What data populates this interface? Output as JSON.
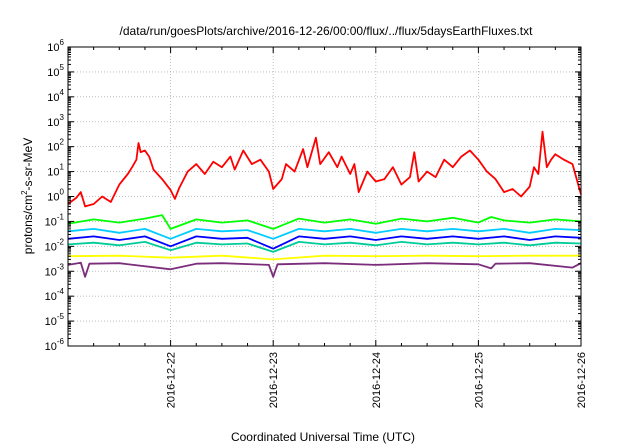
{
  "chart_data": {
    "type": "line",
    "title": "/data/run/goesPlots/archive/2016-12-26/00:00/flux/../flux/5daysEarthFluxes.txt",
    "xlabel": "Coordinated Universal Time (UTC)",
    "ylabel": "protons/cm²-s-sr-MeV",
    "ylabel_parts": {
      "pre": "protons/cm",
      "sup": "2",
      "post": "-s-sr-MeV"
    },
    "y_scale": "log",
    "ylim": [
      1e-06,
      1000000.0
    ],
    "y_ticks": [
      {
        "base": "10",
        "exp": "-6",
        "value": 1e-06
      },
      {
        "base": "10",
        "exp": "-5",
        "value": 1e-05
      },
      {
        "base": "10",
        "exp": "-4",
        "value": 0.0001
      },
      {
        "base": "10",
        "exp": "-3",
        "value": 0.001
      },
      {
        "base": "10",
        "exp": "-2",
        "value": 0.01
      },
      {
        "base": "10",
        "exp": "-1",
        "value": 0.1
      },
      {
        "base": "10",
        "exp": "0",
        "value": 1.0
      },
      {
        "base": "10",
        "exp": "1",
        "value": 10.0
      },
      {
        "base": "10",
        "exp": "2",
        "value": 100.0
      },
      {
        "base": "10",
        "exp": "3",
        "value": 1000.0
      },
      {
        "base": "10",
        "exp": "4",
        "value": 10000.0
      },
      {
        "base": "10",
        "exp": "5",
        "value": 100000.0
      },
      {
        "base": "10",
        "exp": "6",
        "value": 1000000.0
      }
    ],
    "x_ticks": [
      "2016-12-22",
      "2016-12-23",
      "2016-12-24",
      "2016-12-25",
      "2016-12-26"
    ],
    "xlim": [
      "2016-12-21T00:00",
      "2016-12-26T00:00"
    ],
    "grid": true,
    "series": [
      {
        "color": "#ff0000",
        "points": [
          [
            "2016-12-21T00:00",
            0.5
          ],
          [
            "2016-12-21T02:00",
            0.9
          ],
          [
            "2016-12-21T03:00",
            1.5
          ],
          [
            "2016-12-21T04:00",
            0.4
          ],
          [
            "2016-12-21T06:00",
            0.5
          ],
          [
            "2016-12-21T08:00",
            1.0
          ],
          [
            "2016-12-21T10:00",
            0.6
          ],
          [
            "2016-12-21T12:00",
            3
          ],
          [
            "2016-12-21T14:00",
            8
          ],
          [
            "2016-12-21T15:00",
            15
          ],
          [
            "2016-12-21T16:00",
            30
          ],
          [
            "2016-12-21T17:00",
            60
          ],
          [
            "2016-12-21T16:30",
            140
          ],
          [
            "2016-12-21T18:00",
            70
          ],
          [
            "2016-12-21T19:00",
            40
          ],
          [
            "2016-12-21T20:00",
            12
          ],
          [
            "2016-12-21T22:00",
            5
          ],
          [
            "2016-12-22T00:00",
            1.8
          ],
          [
            "2016-12-22T01:00",
            0.8
          ],
          [
            "2016-12-22T02:00",
            2.2
          ],
          [
            "2016-12-22T04:00",
            10
          ],
          [
            "2016-12-22T06:00",
            20
          ],
          [
            "2016-12-22T08:00",
            8
          ],
          [
            "2016-12-22T10:00",
            25
          ],
          [
            "2016-12-22T12:00",
            15
          ],
          [
            "2016-12-22T14:00",
            40
          ],
          [
            "2016-12-22T15:00",
            12
          ],
          [
            "2016-12-22T17:00",
            70
          ],
          [
            "2016-12-22T19:00",
            20
          ],
          [
            "2016-12-22T21:00",
            30
          ],
          [
            "2016-12-22T23:00",
            10
          ],
          [
            "2016-12-23T00:00",
            2
          ],
          [
            "2016-12-23T02:00",
            5
          ],
          [
            "2016-12-23T03:00",
            20
          ],
          [
            "2016-12-23T05:00",
            10
          ],
          [
            "2016-12-23T07:00",
            80
          ],
          [
            "2016-12-23T08:00",
            15
          ],
          [
            "2016-12-23T10:00",
            230
          ],
          [
            "2016-12-23T11:00",
            20
          ],
          [
            "2016-12-23T13:00",
            60
          ],
          [
            "2016-12-23T15:00",
            15
          ],
          [
            "2016-12-23T16:00",
            40
          ],
          [
            "2016-12-23T18:00",
            8
          ],
          [
            "2016-12-23T19:00",
            20
          ],
          [
            "2016-12-23T20:00",
            1.5
          ],
          [
            "2016-12-23T22:00",
            10
          ],
          [
            "2016-12-24T00:00",
            4
          ],
          [
            "2016-12-24T02:00",
            5
          ],
          [
            "2016-12-24T04:00",
            15
          ],
          [
            "2016-12-24T06:00",
            3
          ],
          [
            "2016-12-24T08:00",
            6
          ],
          [
            "2016-12-24T09:00",
            60
          ],
          [
            "2016-12-24T10:00",
            4
          ],
          [
            "2016-12-24T12:00",
            10
          ],
          [
            "2016-12-24T14:00",
            6
          ],
          [
            "2016-12-24T16:00",
            30
          ],
          [
            "2016-12-24T18:00",
            15
          ],
          [
            "2016-12-24T20:00",
            40
          ],
          [
            "2016-12-24T22:00",
            70
          ],
          [
            "2016-12-25T00:00",
            30
          ],
          [
            "2016-12-25T02:00",
            10
          ],
          [
            "2016-12-25T04:00",
            5
          ],
          [
            "2016-12-25T06:00",
            1.5
          ],
          [
            "2016-12-25T08:00",
            2
          ],
          [
            "2016-12-25T10:00",
            1.0
          ],
          [
            "2016-12-25T12:00",
            2.5
          ],
          [
            "2016-12-25T13:00",
            15
          ],
          [
            "2016-12-25T14:00",
            8
          ],
          [
            "2016-12-25T15:00",
            400
          ],
          [
            "2016-12-25T16:00",
            15
          ],
          [
            "2016-12-25T17:00",
            30
          ],
          [
            "2016-12-25T18:00",
            50
          ],
          [
            "2016-12-25T20:00",
            30
          ],
          [
            "2016-12-25T22:00",
            20
          ],
          [
            "2016-12-25T23:00",
            5
          ],
          [
            "2016-12-26T00:00",
            1.2
          ]
        ]
      },
      {
        "color": "#00ff00",
        "points": [
          [
            "2016-12-21T00:00",
            0.08
          ],
          [
            "2016-12-21T06:00",
            0.12
          ],
          [
            "2016-12-21T12:00",
            0.09
          ],
          [
            "2016-12-21T18:00",
            0.13
          ],
          [
            "2016-12-21T22:00",
            0.18
          ],
          [
            "2016-12-22T00:00",
            0.05
          ],
          [
            "2016-12-22T06:00",
            0.12
          ],
          [
            "2016-12-22T12:00",
            0.09
          ],
          [
            "2016-12-22T18:00",
            0.11
          ],
          [
            "2016-12-23T00:00",
            0.05
          ],
          [
            "2016-12-23T06:00",
            0.13
          ],
          [
            "2016-12-23T12:00",
            0.09
          ],
          [
            "2016-12-23T18:00",
            0.12
          ],
          [
            "2016-12-24T00:00",
            0.08
          ],
          [
            "2016-12-24T06:00",
            0.13
          ],
          [
            "2016-12-24T12:00",
            0.1
          ],
          [
            "2016-12-24T18:00",
            0.14
          ],
          [
            "2016-12-25T00:00",
            0.09
          ],
          [
            "2016-12-25T03:00",
            0.15
          ],
          [
            "2016-12-25T06:00",
            0.11
          ],
          [
            "2016-12-25T12:00",
            0.09
          ],
          [
            "2016-12-25T18:00",
            0.12
          ],
          [
            "2016-12-26T00:00",
            0.1
          ]
        ]
      },
      {
        "color": "#00ccff",
        "points": [
          [
            "2016-12-21T00:00",
            0.04
          ],
          [
            "2016-12-21T06:00",
            0.05
          ],
          [
            "2016-12-21T12:00",
            0.035
          ],
          [
            "2016-12-21T18:00",
            0.05
          ],
          [
            "2016-12-22T00:00",
            0.02
          ],
          [
            "2016-12-22T06:00",
            0.05
          ],
          [
            "2016-12-22T12:00",
            0.04
          ],
          [
            "2016-12-22T18:00",
            0.045
          ],
          [
            "2016-12-23T00:00",
            0.02
          ],
          [
            "2016-12-23T06:00",
            0.05
          ],
          [
            "2016-12-23T12:00",
            0.04
          ],
          [
            "2016-12-23T18:00",
            0.05
          ],
          [
            "2016-12-24T00:00",
            0.035
          ],
          [
            "2016-12-24T06:00",
            0.05
          ],
          [
            "2016-12-24T12:00",
            0.04
          ],
          [
            "2016-12-24T18:00",
            0.05
          ],
          [
            "2016-12-25T00:00",
            0.04
          ],
          [
            "2016-12-25T06:00",
            0.05
          ],
          [
            "2016-12-25T12:00",
            0.035
          ],
          [
            "2016-12-25T18:00",
            0.05
          ],
          [
            "2016-12-26T00:00",
            0.045
          ]
        ]
      },
      {
        "color": "#0000ff",
        "points": [
          [
            "2016-12-21T00:00",
            0.02
          ],
          [
            "2016-12-21T06:00",
            0.025
          ],
          [
            "2016-12-21T12:00",
            0.018
          ],
          [
            "2016-12-21T18:00",
            0.025
          ],
          [
            "2016-12-22T00:00",
            0.01
          ],
          [
            "2016-12-22T06:00",
            0.025
          ],
          [
            "2016-12-22T12:00",
            0.02
          ],
          [
            "2016-12-22T18:00",
            0.022
          ],
          [
            "2016-12-23T00:00",
            0.008
          ],
          [
            "2016-12-23T06:00",
            0.025
          ],
          [
            "2016-12-23T12:00",
            0.02
          ],
          [
            "2016-12-23T18:00",
            0.025
          ],
          [
            "2016-12-24T00:00",
            0.018
          ],
          [
            "2016-12-24T06:00",
            0.025
          ],
          [
            "2016-12-24T12:00",
            0.02
          ],
          [
            "2016-12-24T18:00",
            0.025
          ],
          [
            "2016-12-25T00:00",
            0.02
          ],
          [
            "2016-12-25T06:00",
            0.025
          ],
          [
            "2016-12-25T12:00",
            0.018
          ],
          [
            "2016-12-25T18:00",
            0.025
          ],
          [
            "2016-12-26T00:00",
            0.022
          ]
        ]
      },
      {
        "color": "#00cc99",
        "points": [
          [
            "2016-12-21T00:00",
            0.012
          ],
          [
            "2016-12-21T06:00",
            0.014
          ],
          [
            "2016-12-21T12:00",
            0.011
          ],
          [
            "2016-12-21T18:00",
            0.015
          ],
          [
            "2016-12-22T00:00",
            0.007
          ],
          [
            "2016-12-22T06:00",
            0.014
          ],
          [
            "2016-12-22T12:00",
            0.012
          ],
          [
            "2016-12-22T18:00",
            0.013
          ],
          [
            "2016-12-23T00:00",
            0.006
          ],
          [
            "2016-12-23T06:00",
            0.015
          ],
          [
            "2016-12-23T12:00",
            0.012
          ],
          [
            "2016-12-23T18:00",
            0.014
          ],
          [
            "2016-12-24T00:00",
            0.011
          ],
          [
            "2016-12-24T06:00",
            0.015
          ],
          [
            "2016-12-24T12:00",
            0.012
          ],
          [
            "2016-12-24T18:00",
            0.014
          ],
          [
            "2016-12-25T00:00",
            0.012
          ],
          [
            "2016-12-25T06:00",
            0.014
          ],
          [
            "2016-12-25T12:00",
            0.011
          ],
          [
            "2016-12-25T18:00",
            0.014
          ],
          [
            "2016-12-26T00:00",
            0.013
          ]
        ]
      },
      {
        "color": "#ffff00",
        "points": [
          [
            "2016-12-21T00:00",
            0.004
          ],
          [
            "2016-12-21T12:00",
            0.0042
          ],
          [
            "2016-12-22T00:00",
            0.0035
          ],
          [
            "2016-12-22T12:00",
            0.0042
          ],
          [
            "2016-12-23T00:00",
            0.003
          ],
          [
            "2016-12-23T12:00",
            0.0042
          ],
          [
            "2016-12-24T00:00",
            0.004
          ],
          [
            "2016-12-24T12:00",
            0.0042
          ],
          [
            "2016-12-25T00:00",
            0.004
          ],
          [
            "2016-12-25T12:00",
            0.0042
          ],
          [
            "2016-12-26T00:00",
            0.0042
          ]
        ]
      },
      {
        "color": "#7b2d7b",
        "points": [
          [
            "2016-12-21T00:00",
            0.0018
          ],
          [
            "2016-12-21T03:00",
            0.0022
          ],
          [
            "2016-12-21T04:00",
            0.0006
          ],
          [
            "2016-12-21T05:00",
            0.002
          ],
          [
            "2016-12-21T12:00",
            0.0021
          ],
          [
            "2016-12-22T00:00",
            0.0012
          ],
          [
            "2016-12-22T06:00",
            0.002
          ],
          [
            "2016-12-22T12:00",
            0.0021
          ],
          [
            "2016-12-22T23:00",
            0.0018
          ],
          [
            "2016-12-23T00:00",
            0.0006
          ],
          [
            "2016-12-23T01:00",
            0.0019
          ],
          [
            "2016-12-23T12:00",
            0.0021
          ],
          [
            "2016-12-24T00:00",
            0.0018
          ],
          [
            "2016-12-24T12:00",
            0.0021
          ],
          [
            "2016-12-25T00:00",
            0.0019
          ],
          [
            "2016-12-25T03:00",
            0.0013
          ],
          [
            "2016-12-25T04:00",
            0.002
          ],
          [
            "2016-12-25T12:00",
            0.0021
          ],
          [
            "2016-12-25T22:00",
            0.0014
          ],
          [
            "2016-12-26T00:00",
            0.0021
          ]
        ]
      }
    ]
  }
}
